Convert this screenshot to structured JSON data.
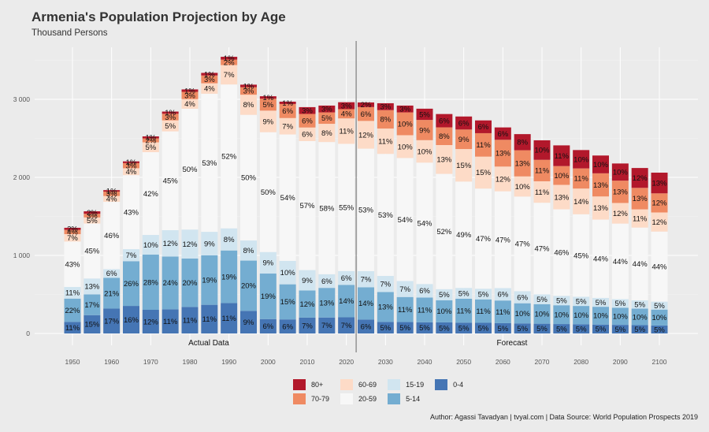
{
  "header": {
    "title": "Armenia's Population Projection by Age",
    "subtitle": "Thousand Persons"
  },
  "caption": "Author: Agassi Tavadyan   |   tvyal.com   |   Data Source: World Population Prospects 2019",
  "chart_data": {
    "type": "bar",
    "stacked": true,
    "x": [
      1950,
      1955,
      1960,
      1965,
      1970,
      1975,
      1980,
      1985,
      1990,
      1995,
      2000,
      2005,
      2010,
      2015,
      2020,
      2025,
      2030,
      2035,
      2040,
      2045,
      2050,
      2055,
      2060,
      2065,
      2070,
      2075,
      2080,
      2085,
      2090,
      2095,
      2100
    ],
    "totals": [
      1354,
      1565,
      1874,
      2205,
      2525,
      2815,
      3096,
      3339,
      3545,
      3220,
      3070,
      3000,
      2900,
      2920,
      2963,
      2960,
      2950,
      2920,
      2880,
      2840,
      2780,
      2730,
      2640,
      2580,
      2500,
      2410,
      2350,
      2280,
      2200,
      2120,
      2040
    ],
    "series": [
      {
        "name": "0-4",
        "color": "#4575b4",
        "pct": [
          11,
          15,
          17,
          16,
          12,
          11,
          11,
          11,
          11,
          9,
          6,
          6,
          7,
          7,
          7,
          6,
          5,
          5,
          5,
          5,
          5,
          5,
          5,
          5,
          5,
          5,
          5,
          5,
          5,
          5,
          5
        ]
      },
      {
        "name": "5-14",
        "color": "#74add1",
        "pct": [
          22,
          17,
          21,
          26,
          28,
          24,
          20,
          19,
          19,
          20,
          19,
          15,
          12,
          13,
          14,
          14,
          13,
          11,
          11,
          10,
          11,
          11,
          11,
          10,
          10,
          10,
          10,
          10,
          10,
          10,
          10
        ]
      },
      {
        "name": "15-19",
        "color": "#d1e5f0",
        "pct": [
          11,
          13,
          6,
          7,
          10,
          12,
          12,
          9,
          8,
          8,
          9,
          10,
          9,
          6,
          6,
          7,
          7,
          7,
          6,
          5,
          5,
          5,
          6,
          6,
          5,
          5,
          5,
          5,
          5,
          5,
          5
        ]
      },
      {
        "name": "20-59",
        "color": "#f7f7f7",
        "pct": [
          43,
          45,
          46,
          43,
          42,
          45,
          50,
          53,
          52,
          50,
          50,
          54,
          57,
          58,
          55,
          53,
          53,
          54,
          54,
          52,
          49,
          47,
          47,
          47,
          47,
          46,
          45,
          44,
          44,
          44,
          44
        ]
      },
      {
        "name": "60-69",
        "color": "#fddbc7",
        "pct": [
          7,
          5,
          4,
          4,
          5,
          5,
          4,
          4,
          7,
          8,
          9,
          7,
          6,
          8,
          11,
          12,
          11,
          10,
          10,
          13,
          15,
          15,
          12,
          10,
          11,
          13,
          14,
          13,
          12,
          11,
          12
        ]
      },
      {
        "name": "70-79",
        "color": "#ef8a62",
        "pct": [
          4,
          3,
          3,
          3,
          2,
          3,
          3,
          3,
          2,
          3,
          5,
          6,
          6,
          5,
          4,
          6,
          8,
          10,
          9,
          8,
          9,
          11,
          13,
          13,
          11,
          10,
          11,
          13,
          13,
          13,
          12
        ]
      },
      {
        "name": "80+",
        "color": "#b2182b",
        "pct": [
          2,
          2,
          1,
          1,
          1,
          1,
          1,
          1,
          1,
          1,
          1,
          1,
          3,
          3,
          3,
          2,
          3,
          3,
          5,
          6,
          6,
          6,
          6,
          8,
          10,
          11,
          10,
          10,
          10,
          12,
          13
        ]
      }
    ],
    "xlabel": "",
    "ylabel": "",
    "ylim": [
      0,
      3700
    ],
    "yticks": [
      0,
      1000,
      2000,
      3000
    ],
    "ytick_labels": [
      "0",
      "1 000",
      "2 000",
      "3 000"
    ],
    "xticks": [
      1950,
      1960,
      1970,
      1980,
      1990,
      2000,
      2010,
      2020,
      2030,
      2040,
      2050,
      2060,
      2070,
      2080,
      2090,
      2100
    ],
    "split_year": 2022.5,
    "annotations": [
      "Actual Data",
      "Forecast"
    ],
    "grid": true,
    "legend_position": "bottom",
    "legend_order": [
      "80+",
      "70-79",
      "60-69",
      "20-59",
      "15-19",
      "5-14",
      "0-4"
    ]
  }
}
